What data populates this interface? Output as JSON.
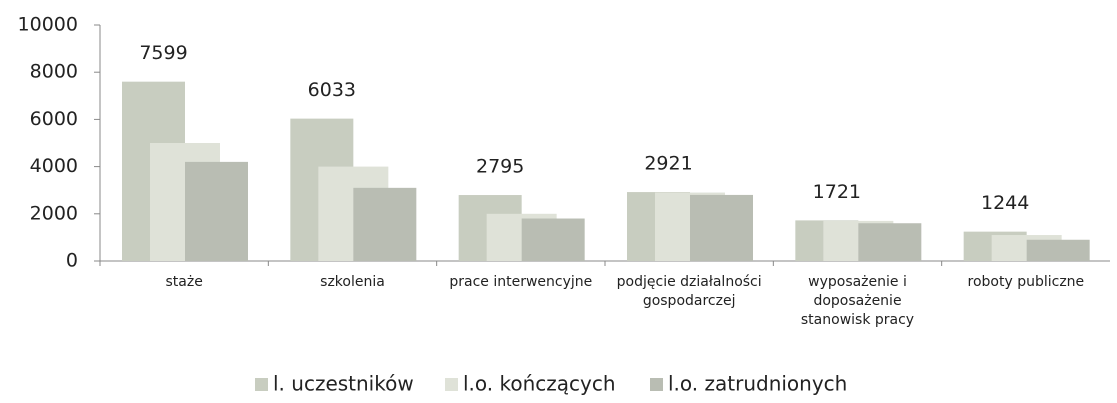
{
  "chart_data": {
    "type": "bar",
    "categories": [
      "staże",
      "szkolenia",
      "prace interwencyjne",
      "podjęcie działalności gospodarczej",
      "wyposażenie i doposażenie stanowisk pracy",
      "roboty publiczne"
    ],
    "series": [
      {
        "name": "l. uczestników",
        "color": "#c8cdc0",
        "values": [
          7599,
          6033,
          2795,
          2921,
          1721,
          1244
        ]
      },
      {
        "name": "l.o. kończących",
        "color": "#dfe2d8",
        "values": [
          5000,
          4000,
          2000,
          2900,
          1700,
          1100
        ]
      },
      {
        "name": "l.o. zatrudnionych",
        "color": "#b9bdb3",
        "values": [
          4200,
          3100,
          1800,
          2800,
          1600,
          900
        ]
      }
    ],
    "ylim": [
      0,
      10000
    ],
    "yticks": [
      0,
      2000,
      4000,
      6000,
      8000,
      10000
    ],
    "grid": false,
    "legend": "bottom"
  }
}
